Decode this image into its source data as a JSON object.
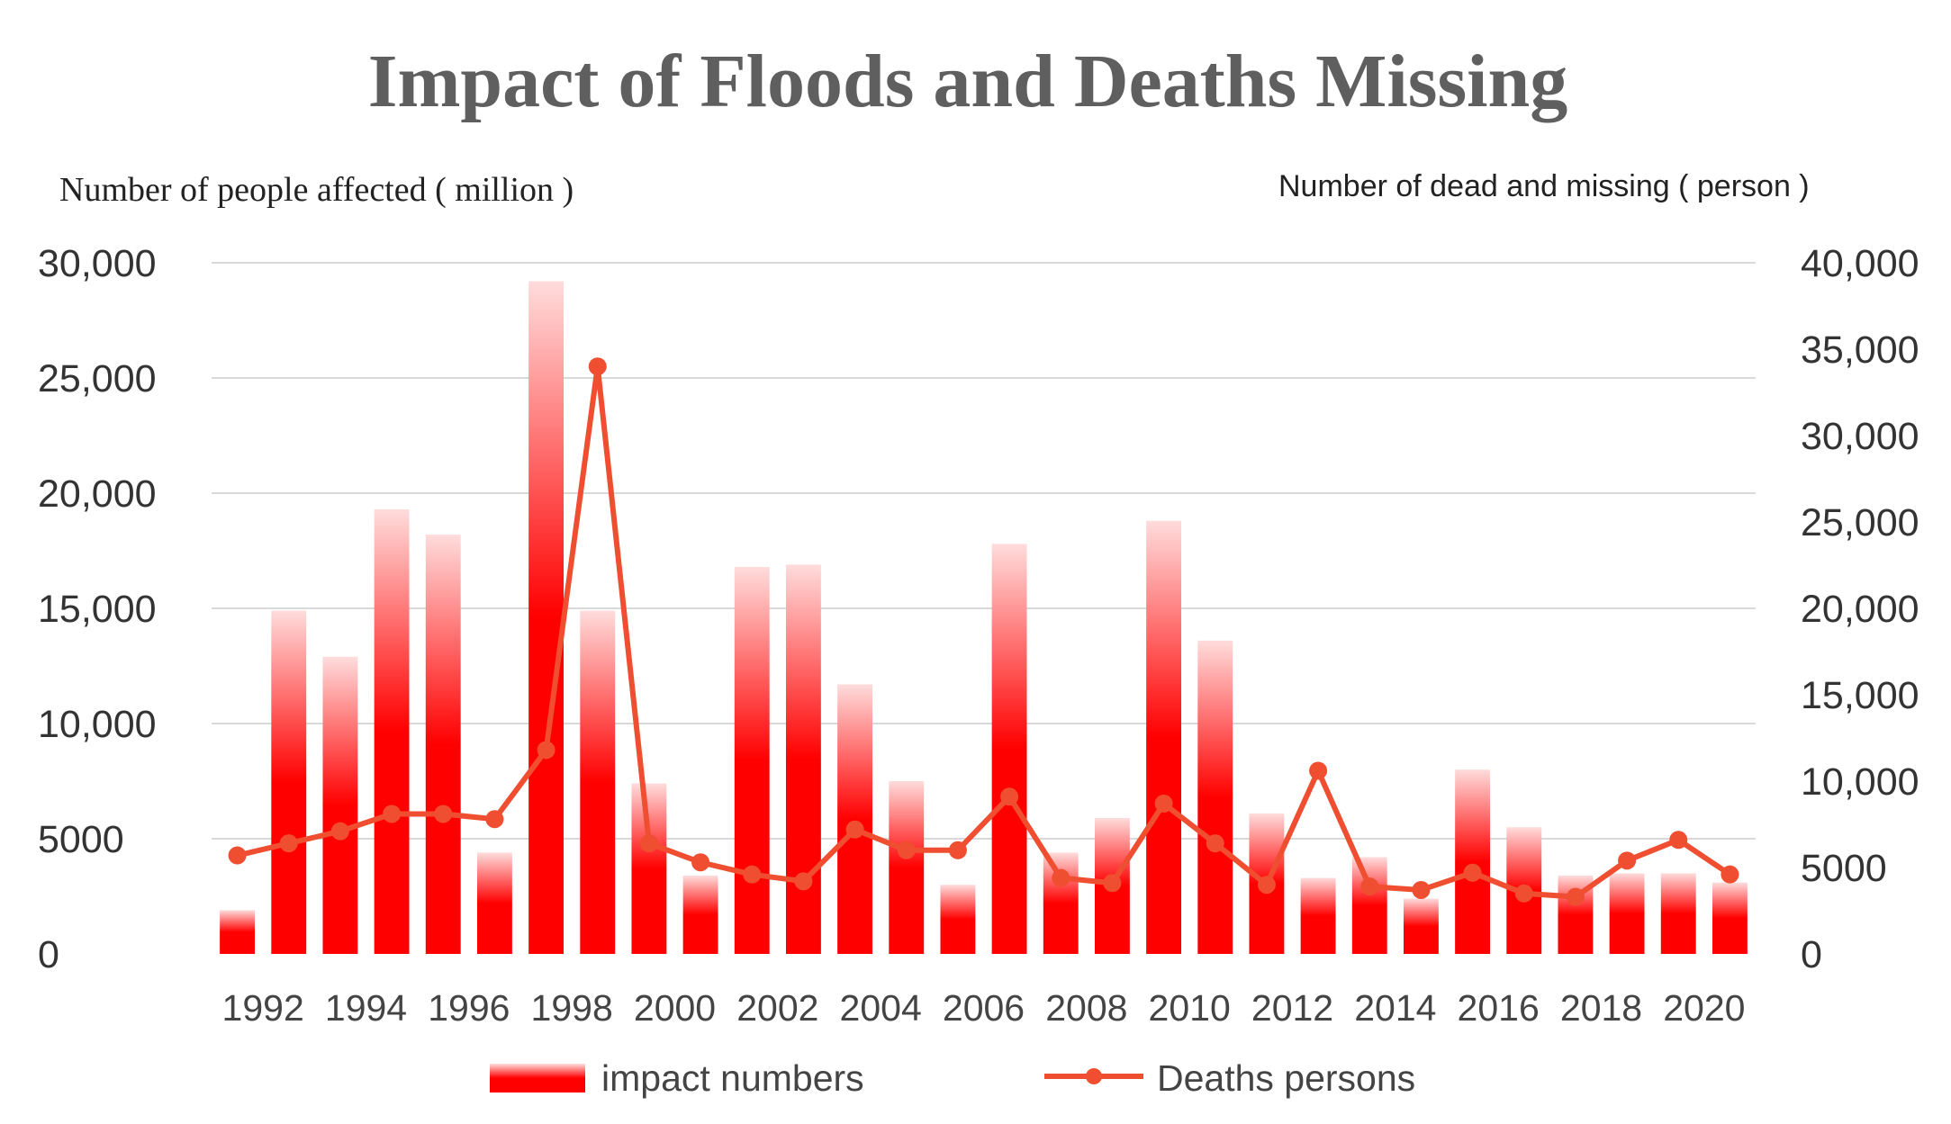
{
  "chart_data": {
    "type": "bar",
    "title": "Impact of Floods and Deaths Missing",
    "ylabel": "Number of people affected ( million )",
    "y2label": "Number of dead and missing ( person )",
    "ylim": [
      0,
      30000
    ],
    "y2lim": [
      0,
      40000
    ],
    "yticks": [
      "0",
      "5000",
      "10,000",
      "15,000",
      "20,000",
      "25,000",
      "30,000"
    ],
    "y2ticks": [
      "0",
      "5000",
      "10,000",
      "15,000",
      "20,000",
      "25,000",
      "30,000",
      "35,000",
      "40,000"
    ],
    "categories": [
      1992,
      1993,
      1994,
      1995,
      1996,
      1997,
      1998,
      1999,
      2000,
      2001,
      2002,
      2003,
      2004,
      2005,
      2006,
      2007,
      2008,
      2009,
      2010,
      2011,
      2012,
      2013,
      2014,
      2015,
      2016,
      2017,
      2018,
      2019,
      2020,
      2021
    ],
    "xtick_labels": [
      "1992",
      "1994",
      "1996",
      "1998",
      "2000",
      "2002",
      "2004",
      "2006",
      "2008",
      "2010",
      "2012",
      "2014",
      "2016",
      "2018",
      "2020"
    ],
    "series": [
      {
        "name": "impact numbers",
        "type": "bar",
        "axis": "left",
        "color": "#ff0000",
        "values": [
          1900,
          14900,
          12900,
          19300,
          18200,
          4400,
          29200,
          14900,
          7400,
          3400,
          16800,
          16900,
          11700,
          7500,
          3000,
          17800,
          4400,
          5900,
          18800,
          13600,
          6100,
          3300,
          4200,
          2400,
          8000,
          5500,
          3400,
          3500,
          3500,
          3100
        ]
      },
      {
        "name": "Deaths  persons",
        "type": "line",
        "axis": "right",
        "color": "#f04e30",
        "values": [
          5700,
          6400,
          7100,
          8100,
          8100,
          7800,
          11800,
          34000,
          6400,
          5300,
          4600,
          4200,
          7200,
          6000,
          6000,
          9100,
          4400,
          4100,
          8700,
          6400,
          4000,
          10600,
          3900,
          3700,
          4700,
          3500,
          3300,
          5400,
          6600,
          4600
        ]
      }
    ],
    "legend": [
      "impact numbers",
      "Deaths  persons"
    ],
    "legend_position": "bottom"
  }
}
